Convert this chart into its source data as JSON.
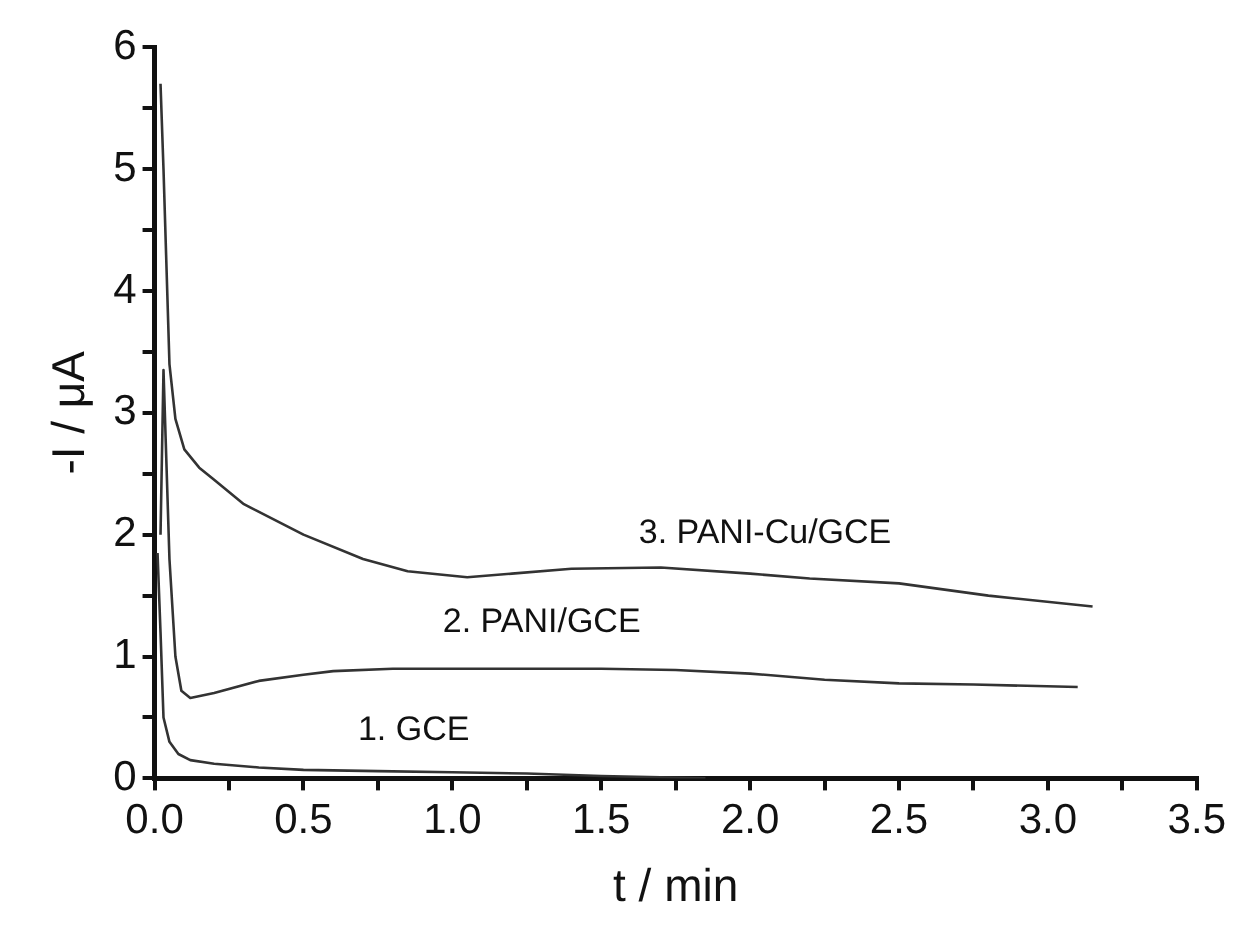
{
  "chart_data": {
    "type": "line",
    "xlabel": "t / min",
    "ylabel": "-I / μA",
    "xlim": [
      0,
      3.5
    ],
    "ylim": [
      0,
      6
    ],
    "xticks": [
      {
        "value": 0,
        "label": "0.0"
      },
      {
        "value": 0.25,
        "label": null
      },
      {
        "value": 0.5,
        "label": "0.5"
      },
      {
        "value": 0.75,
        "label": null
      },
      {
        "value": 1,
        "label": "1.0"
      },
      {
        "value": 1.25,
        "label": null
      },
      {
        "value": 1.5,
        "label": "1.5"
      },
      {
        "value": 1.75,
        "label": null
      },
      {
        "value": 2,
        "label": "2.0"
      },
      {
        "value": 2.25,
        "label": null
      },
      {
        "value": 2.5,
        "label": "2.5"
      },
      {
        "value": 2.75,
        "label": null
      },
      {
        "value": 3,
        "label": "3.0"
      },
      {
        "value": 3.25,
        "label": null
      },
      {
        "value": 3.5,
        "label": "3.5"
      }
    ],
    "yticks": [
      0,
      {
        "value": 0.5,
        "label": null
      },
      1,
      {
        "value": 1.5,
        "label": null
      },
      2,
      {
        "value": 2.5,
        "label": null
      },
      3,
      {
        "value": 3.5,
        "label": null
      },
      4,
      {
        "value": 4.5,
        "label": null
      },
      5,
      {
        "value": 5.5,
        "label": null
      },
      6
    ],
    "grid": false,
    "legend": false,
    "marker": "none",
    "line_style": "solid",
    "series": [
      {
        "color": "#333333",
        "x": [
          0.01,
          0.02,
          0.03,
          0.05,
          0.08,
          0.12,
          0.2,
          0.35,
          0.5,
          0.75,
          1.0,
          1.25,
          1.5,
          1.7,
          1.85
        ],
        "name": "1. GCE",
        "values": [
          1.85,
          1.2,
          0.5,
          0.3,
          0.2,
          0.15,
          0.12,
          0.09,
          0.07,
          0.06,
          0.05,
          0.04,
          0.02,
          0.01,
          0.0
        ]
      },
      {
        "name": "2. PANI/GCE",
        "color": "#333333",
        "x": [
          0.02,
          0.03,
          0.05,
          0.07,
          0.09,
          0.12,
          0.2,
          0.35,
          0.5,
          0.6,
          0.8,
          1.0,
          1.25,
          1.5,
          1.75,
          2.0,
          2.25,
          2.5,
          2.75,
          3.1
        ],
        "values": [
          2.0,
          3.35,
          1.8,
          1.0,
          0.72,
          0.66,
          0.7,
          0.8,
          0.85,
          0.88,
          0.9,
          0.9,
          0.9,
          0.9,
          0.89,
          0.86,
          0.81,
          0.78,
          0.77,
          0.75
        ]
      },
      {
        "name": "3. PANI-Cu/GCE",
        "color": "#333333",
        "x": [
          0.02,
          0.03,
          0.05,
          0.07,
          0.1,
          0.15,
          0.2,
          0.3,
          0.5,
          0.7,
          0.85,
          1.05,
          1.2,
          1.4,
          1.7,
          2.0,
          2.2,
          2.5,
          2.8,
          3.15
        ],
        "values": [
          5.7,
          5.0,
          3.4,
          2.95,
          2.7,
          2.55,
          2.45,
          2.25,
          2.0,
          1.8,
          1.7,
          1.65,
          1.68,
          1.72,
          1.73,
          1.68,
          1.64,
          1.6,
          1.5,
          1.41
        ]
      }
    ]
  }
}
